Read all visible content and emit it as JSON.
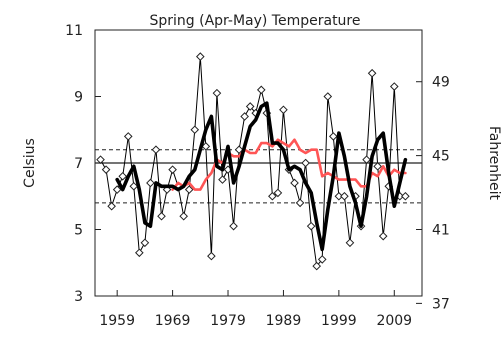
{
  "chart_data": {
    "type": "line",
    "title": "Spring (Apr-May) Temperature",
    "ylabel": "Celsius",
    "y2label": "Fahrenheit",
    "xlim": [
      1955,
      2014
    ],
    "ylim": [
      3,
      11
    ],
    "y2lim": [
      37.4,
      51.8
    ],
    "xticks": [
      1959,
      1969,
      1979,
      1989,
      1999,
      2009
    ],
    "yticks": [
      3,
      5,
      7,
      9,
      11
    ],
    "y2ticks": [
      37,
      41,
      45,
      49
    ],
    "grid": false,
    "reference_lines": [
      7.4,
      7.0,
      5.8
    ],
    "series": [
      {
        "style": "thin-black-diamond",
        "color": "#000000",
        "x": [
          1956,
          1957,
          1958,
          1959,
          1960,
          1961,
          1962,
          1963,
          1964,
          1965,
          1966,
          1967,
          1968,
          1969,
          1970,
          1971,
          1972,
          1973,
          1974,
          1975,
          1976,
          1977,
          1978,
          1979,
          1980,
          1981,
          1982,
          1983,
          1984,
          1985,
          1986,
          1987,
          1988,
          1989,
          1990,
          1991,
          1992,
          1993,
          1994,
          1995,
          1996,
          1997,
          1998,
          1999,
          2000,
          2001,
          2002,
          2003,
          2004,
          2005,
          2006,
          2007,
          2008,
          2009,
          2010,
          2011
        ],
        "values": [
          7.1,
          6.8,
          5.7,
          6.2,
          6.6,
          7.8,
          6.3,
          4.3,
          4.6,
          6.4,
          7.4,
          5.4,
          6.2,
          6.8,
          6.3,
          5.4,
          6.2,
          8.0,
          10.2,
          7.5,
          4.2,
          9.1,
          6.5,
          6.8,
          5.1,
          7.4,
          8.4,
          8.7,
          8.5,
          9.2,
          8.5,
          6.0,
          6.1,
          8.6,
          6.8,
          6.4,
          5.8,
          7.0,
          5.1,
          3.9,
          4.1,
          9.0,
          7.8,
          6.0,
          6.0,
          4.6,
          6.0,
          5.1,
          7.1,
          9.7,
          6.9,
          4.8,
          6.3,
          9.3,
          6.0,
          6.0
        ]
      },
      {
        "style": "thick-black",
        "color": "#000000",
        "x": [
          1959,
          1960,
          1961,
          1962,
          1963,
          1964,
          1965,
          1966,
          1967,
          1968,
          1969,
          1970,
          1971,
          1972,
          1973,
          1974,
          1975,
          1976,
          1977,
          1978,
          1979,
          1980,
          1981,
          1982,
          1983,
          1984,
          1985,
          1986,
          1987,
          1988,
          1989,
          1990,
          1991,
          1992,
          1993,
          1994,
          1995,
          1996,
          1997,
          1998,
          1999,
          2000,
          2001,
          2002,
          2003,
          2004,
          2005,
          2006,
          2007,
          2008,
          2009,
          2010,
          2011
        ],
        "values": [
          6.5,
          6.2,
          6.6,
          6.9,
          6.2,
          5.2,
          5.1,
          6.4,
          6.3,
          6.3,
          6.3,
          6.2,
          6.3,
          6.6,
          6.8,
          7.4,
          8.0,
          8.4,
          6.9,
          6.8,
          7.5,
          6.4,
          6.9,
          7.5,
          8.1,
          8.3,
          8.7,
          8.8,
          7.6,
          7.6,
          7.4,
          6.8,
          6.9,
          6.8,
          6.4,
          6.1,
          5.2,
          4.4,
          5.6,
          6.6,
          7.9,
          7.2,
          6.3,
          5.8,
          5.1,
          6.0,
          7.2,
          7.7,
          7.9,
          6.7,
          5.7,
          6.4,
          7.1
        ]
      },
      {
        "style": "thick-red",
        "color": "#ff5555",
        "x": [
          1969,
          1970,
          1971,
          1972,
          1973,
          1974,
          1975,
          1976,
          1977,
          1978,
          1979,
          1980,
          1981,
          1982,
          1983,
          1984,
          1985,
          1986,
          1987,
          1988,
          1989,
          1990,
          1991,
          1992,
          1993,
          1994,
          1995,
          1996,
          1997,
          1998,
          1999,
          2000,
          2001,
          2002,
          2003,
          2004,
          2005,
          2006,
          2007,
          2008,
          2009,
          2010,
          2011
        ],
        "values": [
          6.2,
          6.4,
          6.3,
          6.4,
          6.2,
          6.2,
          6.5,
          6.7,
          7.1,
          7.0,
          7.3,
          7.2,
          7.2,
          7.4,
          7.3,
          7.3,
          7.6,
          7.6,
          7.5,
          7.7,
          7.6,
          7.5,
          7.7,
          7.4,
          7.3,
          7.4,
          7.4,
          6.6,
          6.7,
          6.6,
          6.5,
          6.5,
          6.5,
          6.5,
          6.3,
          6.3,
          6.7,
          6.6,
          6.9,
          6.6,
          6.8,
          6.7,
          6.7
        ]
      }
    ]
  }
}
